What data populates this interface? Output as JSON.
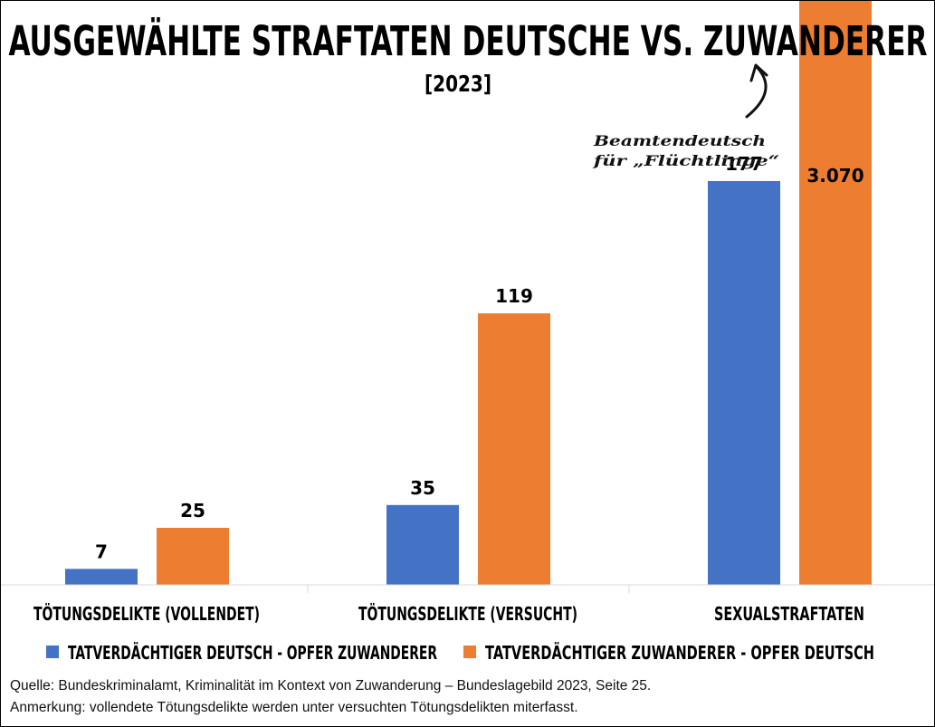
{
  "chart_data": {
    "type": "bar",
    "title": "AUSGEWÄHLTE STRAFTATEN DEUTSCHE VS. ZUWANDERER",
    "subtitle": "[2023]",
    "categories": [
      "TÖTUNGSDELIKTE (VOLLENDET)",
      "TÖTUNGSDELIKTE (VERSUCHT)",
      "SEXUALSTRAFTATEN"
    ],
    "series": [
      {
        "name": "TATVERDÄCHTIGER DEUTSCH - OPFER ZUWANDERER",
        "values": [
          7,
          35,
          177
        ],
        "labels": [
          "7",
          "35",
          "177"
        ],
        "color": "#4472C4"
      },
      {
        "name": "TATVERDÄCHTIGER ZUWANDERER - OPFER DEUTSCH",
        "values": [
          25,
          119,
          3070
        ],
        "labels": [
          "25",
          "119",
          "3.070"
        ],
        "color": "#ED7D31"
      }
    ],
    "axis_scale": "broken",
    "legend_position": "bottom",
    "grid": false,
    "annotation": {
      "lines": [
        "Beamtendeutsch",
        "für „Flüchtlinge“"
      ]
    }
  },
  "source_line": "Quelle: Bundeskriminalamt, Kriminalität im Kontext von Zuwanderung – Bundeslagebild 2023, Seite 25.",
  "note_line": "Anmerkung: vollendete Tötungsdelikte werden unter versuchten Tötungsdelikten miterfasst."
}
